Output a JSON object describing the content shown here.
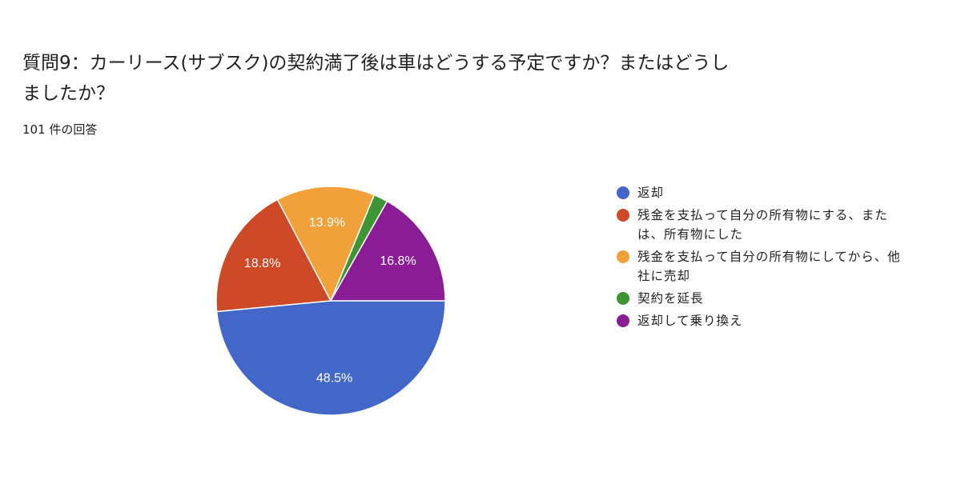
{
  "header": {
    "title": "質問9：カーリース(サブスク)の契約満了後は車はどうする予定ですか？またはどうしましたか？",
    "response_count": "101 件の回答"
  },
  "chart_data": {
    "type": "pie",
    "title": "質問9：カーリース(サブスク)の契約満了後は車はどうする予定ですか？またはどうしましたか？",
    "subtitle": "101 件の回答",
    "total_responses": 101,
    "start_angle_deg": 90,
    "direction": "clockwise",
    "legend_position": "right",
    "slices": [
      {
        "label": "返却",
        "value": 48.5,
        "display": "48.5%",
        "color": "#4267C8",
        "show_label": true
      },
      {
        "label": "残金を支払って自分の所有物にする、または、所有物にした",
        "value": 18.8,
        "display": "18.8%",
        "color": "#CD4927",
        "show_label": true
      },
      {
        "label": "残金を支払って自分の所有物にしてから、他社に売却",
        "value": 13.9,
        "display": "13.9%",
        "color": "#F1A13A",
        "show_label": true
      },
      {
        "label": "契約を延長",
        "value": 2.0,
        "display": "",
        "color": "#3D9534",
        "show_label": false
      },
      {
        "label": "返却して乗り換え",
        "value": 16.8,
        "display": "16.8%",
        "color": "#8A1C96",
        "show_label": true
      }
    ],
    "categories": [
      "返却",
      "残金を支払って自分の所有物にする、または、所有物にした",
      "残金を支払って自分の所有物にしてから、他社に売却",
      "契約を延長",
      "返却して乗り換え"
    ],
    "values": [
      48.5,
      18.8,
      13.9,
      2.0,
      16.8
    ]
  },
  "legend": {
    "items": [
      {
        "label": "返却",
        "color": "#4267C8"
      },
      {
        "label": "残金を支払って自分の所有物にする、または、所有物にした",
        "color": "#CD4927"
      },
      {
        "label": "残金を支払って自分の所有物にしてから、他社に売却",
        "color": "#F1A13A"
      },
      {
        "label": "契約を延長",
        "color": "#3D9534"
      },
      {
        "label": "返却して乗り換え",
        "color": "#8A1C96"
      }
    ]
  }
}
